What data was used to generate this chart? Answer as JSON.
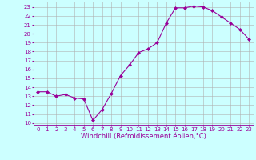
{
  "x": [
    0,
    1,
    2,
    3,
    4,
    5,
    6,
    7,
    8,
    9,
    10,
    11,
    12,
    13,
    14,
    15,
    16,
    17,
    18,
    19,
    20,
    21,
    22,
    23
  ],
  "y": [
    13.5,
    13.5,
    13.0,
    13.2,
    12.8,
    12.7,
    10.3,
    11.5,
    13.3,
    15.3,
    16.5,
    17.9,
    18.3,
    19.0,
    21.2,
    22.9,
    22.9,
    23.1,
    23.0,
    22.6,
    21.9,
    21.2,
    20.5,
    19.4
  ],
  "line_color": "#990099",
  "marker": "D",
  "marker_size": 2,
  "bg_color": "#ccffff",
  "grid_color": "#b0b0b0",
  "xlabel": "Windchill (Refroidissement éolien,°C)",
  "xlabel_color": "#990099",
  "xtick_labels": [
    "0",
    "1",
    "2",
    "3",
    "4",
    "5",
    "6",
    "7",
    "8",
    "9",
    "10",
    "11",
    "12",
    "13",
    "14",
    "15",
    "16",
    "17",
    "18",
    "19",
    "20",
    "21",
    "22",
    "23"
  ],
  "ytick_labels": [
    "10",
    "11",
    "12",
    "13",
    "14",
    "15",
    "16",
    "17",
    "18",
    "19",
    "20",
    "21",
    "22",
    "23"
  ],
  "ylim": [
    9.8,
    23.6
  ],
  "xlim": [
    -0.5,
    23.5
  ],
  "tick_color": "#990099",
  "spine_color": "#990099",
  "tick_fontsize": 5,
  "xlabel_fontsize": 6
}
